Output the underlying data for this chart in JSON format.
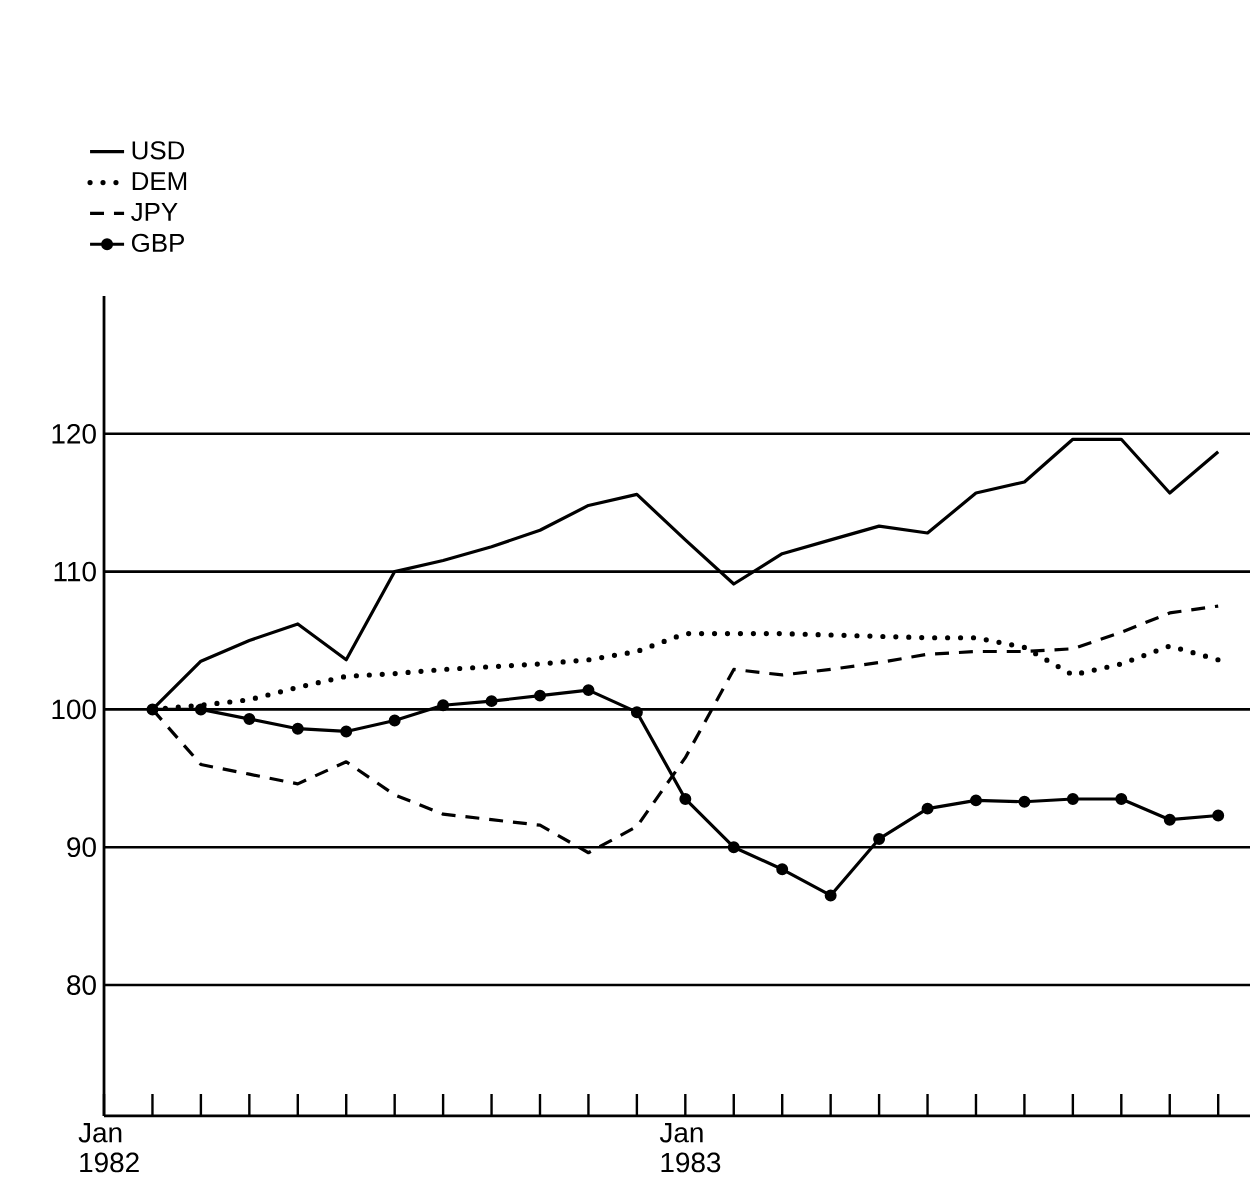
{
  "chart_data": {
    "type": "line",
    "x": [
      "1982-02",
      "1982-03",
      "1982-04",
      "1982-05",
      "1982-06",
      "1982-07",
      "1982-08",
      "1982-09",
      "1982-10",
      "1982-11",
      "1982-12",
      "1983-01",
      "1983-02",
      "1983-03",
      "1983-04",
      "1983-05",
      "1983-06",
      "1983-07",
      "1983-08",
      "1983-09",
      "1983-10",
      "1983-11",
      "1983-12"
    ],
    "series": [
      {
        "name": "USD",
        "color": "#000000",
        "line_style": "solid",
        "marker": "none",
        "values": [
          100,
          103.5,
          105,
          106.2,
          103.6,
          110,
          110.8,
          111.8,
          113,
          114.8,
          115.6,
          112.3,
          109.1,
          111.3,
          112.3,
          113.3,
          112.8,
          115.7,
          116.5,
          119.6,
          119.6,
          115.7,
          118.7
        ]
      },
      {
        "name": "DEM",
        "color": "#000000",
        "line_style": "dotted",
        "marker": "none",
        "values": [
          100,
          100.3,
          100.7,
          101.6,
          102.4,
          102.6,
          102.9,
          103.1,
          103.3,
          103.6,
          104.2,
          105.5,
          105.5,
          105.5,
          105.4,
          105.3,
          105.2,
          105.2,
          104.5,
          102.5,
          103.3,
          104.6,
          103.6
        ]
      },
      {
        "name": "JPY",
        "color": "#000000",
        "line_style": "dashed",
        "marker": "none",
        "values": [
          100,
          96,
          95.3,
          94.6,
          96.2,
          93.8,
          92.4,
          92,
          91.6,
          89.6,
          91.5,
          96.5,
          102.9,
          102.5,
          102.9,
          103.4,
          104,
          104.2,
          104.2,
          104.4,
          105.6,
          107,
          107.5
        ]
      },
      {
        "name": "GBP",
        "color": "#000000",
        "line_style": "solid",
        "marker": "circle",
        "values": [
          100,
          100,
          99.3,
          98.6,
          98.4,
          99.2,
          100.3,
          100.6,
          101,
          101.4,
          99.8,
          93.5,
          90,
          88.4,
          86.5,
          90.6,
          92.8,
          93.4,
          93.3,
          93.5,
          93.5,
          92,
          92.3
        ]
      }
    ],
    "xlim": [
      "1982-01",
      "1983-12-21"
    ],
    "xticks": [
      {
        "value": "1982-01",
        "label": "Jan 1982"
      },
      {
        "value": "1982-02",
        "label": null
      },
      {
        "value": "1982-03",
        "label": null
      },
      {
        "value": "1982-04",
        "label": null
      },
      {
        "value": "1982-05",
        "label": null
      },
      {
        "value": "1982-06",
        "label": null
      },
      {
        "value": "1982-07",
        "label": null
      },
      {
        "value": "1982-08",
        "label": null
      },
      {
        "value": "1982-09",
        "label": null
      },
      {
        "value": "1982-10",
        "label": null
      },
      {
        "value": "1982-11",
        "label": null
      },
      {
        "value": "1982-12",
        "label": null
      },
      {
        "value": "1983-01",
        "label": "Jan 1983"
      },
      {
        "value": "1983-02",
        "label": null
      },
      {
        "value": "1983-03",
        "label": null
      },
      {
        "value": "1983-04",
        "label": null
      },
      {
        "value": "1983-05",
        "label": null
      },
      {
        "value": "1983-06",
        "label": null
      },
      {
        "value": "1983-07",
        "label": null
      },
      {
        "value": "1983-08",
        "label": null
      },
      {
        "value": "1983-09",
        "label": null
      },
      {
        "value": "1983-10",
        "label": null
      },
      {
        "value": "1983-11",
        "label": null
      },
      {
        "value": "1983-12",
        "label": null
      }
    ],
    "ylim": [
      70.5,
      130
    ],
    "yticks": [
      80,
      90,
      100,
      110,
      120
    ],
    "grid": "y",
    "legend": "top left"
  }
}
